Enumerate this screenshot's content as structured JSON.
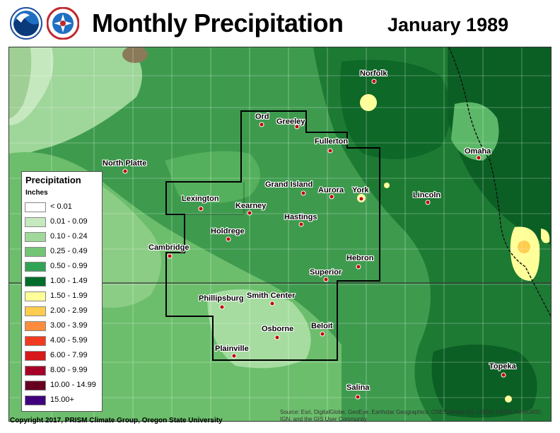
{
  "title": "Monthly Precipitation",
  "date_label": "January 1989",
  "logos": [
    {
      "name": "noaa-logo",
      "text": "NOAA"
    },
    {
      "name": "nws-logo",
      "text": "NATIONAL WEATHER SERVICE"
    }
  ],
  "legend": {
    "title": "Precipitation",
    "units": "Inches",
    "items": [
      {
        "label": "< 0.01",
        "color": "#ffffff"
      },
      {
        "label": "0.01 - 0.09",
        "color": "#c7e9c0"
      },
      {
        "label": "0.10 - 0.24",
        "color": "#a1d99b"
      },
      {
        "label": "0.25 - 0.49",
        "color": "#74c476"
      },
      {
        "label": "0.50 - 0.99",
        "color": "#31a354"
      },
      {
        "label": "1.00 - 1.49",
        "color": "#006d2c"
      },
      {
        "label": "1.50 - 1.99",
        "color": "#ffff99"
      },
      {
        "label": "2.00 - 2.99",
        "color": "#ffcc4d"
      },
      {
        "label": "3.00 - 3.99",
        "color": "#fd8d3c"
      },
      {
        "label": "4.00 - 5.99",
        "color": "#f03b20"
      },
      {
        "label": "6.00 - 7.99",
        "color": "#d7191c"
      },
      {
        "label": "8.00 - 9.99",
        "color": "#a50026"
      },
      {
        "label": "10.00 - 14.99",
        "color": "#67001f"
      },
      {
        "label": "15.00+",
        "color": "#3f007d"
      }
    ]
  },
  "cities": [
    "Norfolk",
    "Ord",
    "Greeley",
    "Fullerton",
    "Omaha",
    "North Platte",
    "Grand Island",
    "Aurora",
    "York",
    "Lincoln",
    "Lexington",
    "Kearney",
    "Hastings",
    "Holdrege",
    "Cambridge",
    "Hebron",
    "Superior",
    "Phillipsburg",
    "Smith Center",
    "Osborne",
    "Beloit",
    "Plainville",
    "Topeka",
    "Salina"
  ],
  "copyright": "Copyright 2017, PRISM Climate Group, Oregon State University",
  "source": "Source: Esri, DigitalGlobe, GeoEye, Earthstar Geographics, CNES/Airbus DS, USDA, USGS, AeroGRID, IGN, and the GIS User Community"
}
